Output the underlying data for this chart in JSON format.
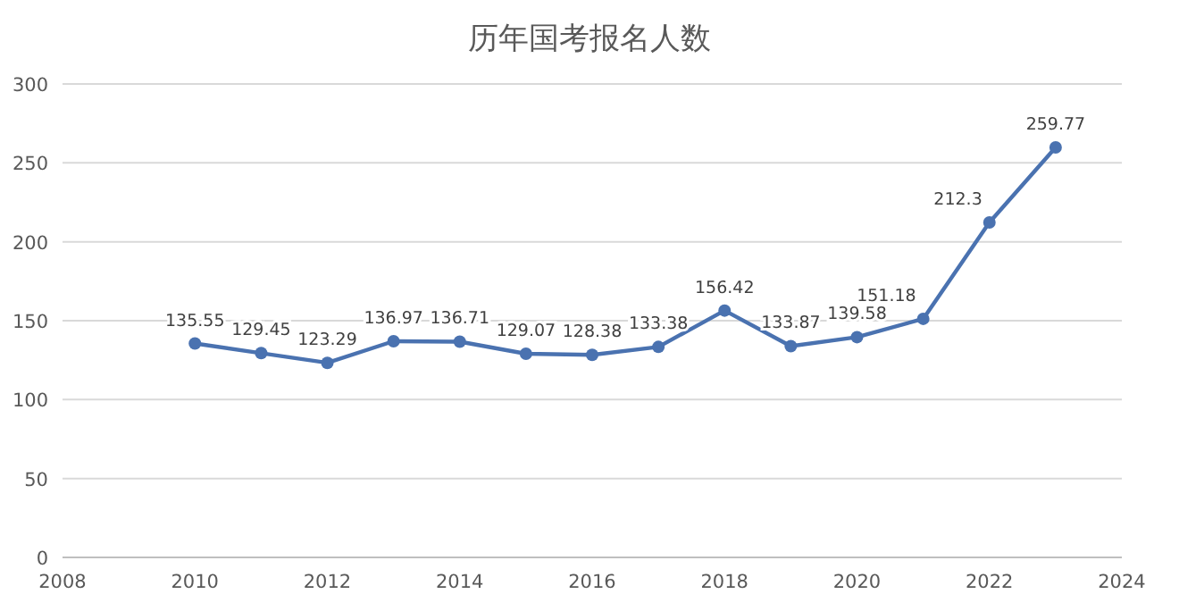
{
  "chart_data": {
    "type": "line",
    "title": "历年国考报名人数",
    "x": [
      2010,
      2011,
      2012,
      2013,
      2014,
      2015,
      2016,
      2017,
      2018,
      2019,
      2020,
      2021,
      2022,
      2023
    ],
    "series": [
      {
        "color": "#4a72b0",
        "values": [
          135.55,
          129.45,
          123.29,
          136.97,
          136.71,
          129.07,
          128.38,
          133.38,
          156.42,
          133.87,
          139.58,
          151.18,
          212.3,
          259.77
        ]
      }
    ],
    "xlim": [
      2008,
      2024
    ],
    "xticks": [
      2008,
      2010,
      2012,
      2014,
      2016,
      2018,
      2020,
      2022,
      2024
    ],
    "ylim": [
      0,
      300
    ],
    "yticks": [
      0,
      50,
      100,
      150,
      200,
      250,
      300
    ],
    "grid": "y",
    "marker": "circle",
    "line_style": "solid",
    "data_labels": true
  }
}
